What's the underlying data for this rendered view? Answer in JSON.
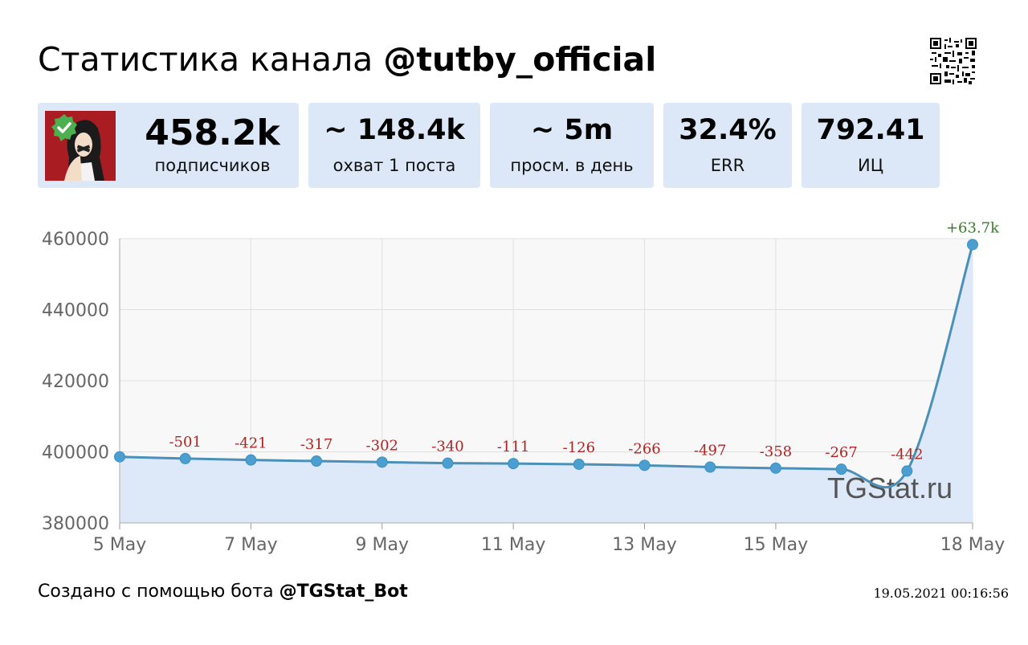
{
  "header": {
    "title_prefix": "Статистика канала ",
    "channel": "@tutby_official"
  },
  "stats": {
    "subscribers": {
      "value": "458.2k",
      "label": "подписчиков"
    },
    "reach": {
      "value": "~ 148.4k",
      "label": "охват 1 поста"
    },
    "daily_views": {
      "value": "~ 5m",
      "label": "просм. в день"
    },
    "err": {
      "value": "32.4%",
      "label": "ERR"
    },
    "ci": {
      "value": "792.41",
      "label": "ИЦ"
    }
  },
  "chart_data": {
    "type": "area",
    "x": [
      "5 May",
      "6 May",
      "7 May",
      "8 May",
      "9 May",
      "10 May",
      "11 May",
      "12 May",
      "13 May",
      "14 May",
      "15 May",
      "16 May",
      "17 May",
      "18 May"
    ],
    "tick_labels": [
      "5 May",
      "7 May",
      "9 May",
      "11 May",
      "13 May",
      "15 May",
      "18 May"
    ],
    "series": [
      {
        "values": [
          398600,
          398100,
          397700,
          397400,
          397100,
          396800,
          396700,
          396500,
          396200,
          395700,
          395400,
          395100,
          394600,
          458300
        ]
      }
    ],
    "data_labels": [
      "",
      "-501",
      "-421",
      "-317",
      "-302",
      "-340",
      "-111",
      "-126",
      "-266",
      "-497",
      "-358",
      "-267",
      "-442",
      "+63.7k"
    ],
    "y_ticks": [
      "460000",
      "440000",
      "420000",
      "400000",
      "380000"
    ],
    "ylim": [
      380000,
      460000
    ],
    "grid": true,
    "watermark": "TGStat.ru",
    "colors": {
      "line": "#4a90b8",
      "point": "#4a9fd0",
      "fill": "#dde9f9",
      "negative_label": "#b22222",
      "positive_label": "#3a7a2a"
    }
  },
  "footer": {
    "created_prefix": "Создано с помощью бота ",
    "bot": "@TGStat_Bot",
    "timestamp": "19.05.2021 00:16:56"
  }
}
